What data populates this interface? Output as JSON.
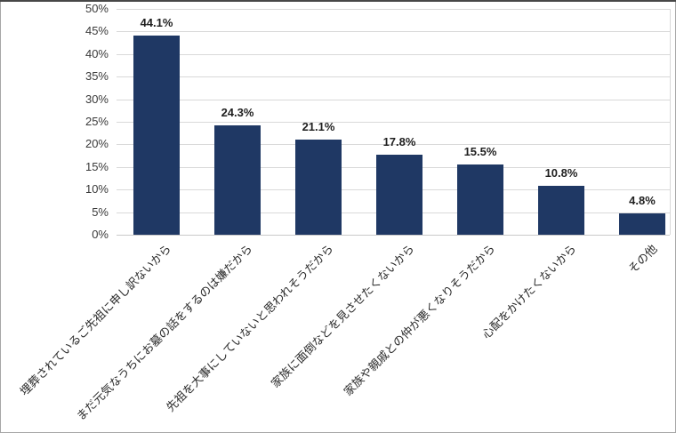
{
  "chart_data": {
    "type": "bar",
    "title": "",
    "xlabel": "",
    "ylabel": "",
    "categories": [
      "埋葬されているご先祖に申し訳ないから",
      "まだ元気なうちにお墓の話をするのは嫌だから",
      "先祖を大事にしていないと思われそうだから",
      "家族に面倒などを見させたくないから",
      "家族や親戚との仲が悪くなりそうだから",
      "心配をかけたくないから",
      "その他"
    ],
    "values": [
      44.1,
      24.3,
      21.1,
      17.8,
      15.5,
      10.8,
      4.8
    ],
    "data_labels": [
      "44.1%",
      "24.3%",
      "21.1%",
      "17.8%",
      "15.5%",
      "10.8%",
      "4.8%"
    ],
    "yticks": [
      "0%",
      "5%",
      "10%",
      "15%",
      "20%",
      "25%",
      "30%",
      "35%",
      "40%",
      "45%",
      "50%"
    ],
    "ylim": [
      0,
      50
    ],
    "ytick_step": 5,
    "grid": "horizontal",
    "legend": "none",
    "category_label_rotation_deg": 45,
    "colors": {
      "bar": "#1f3864",
      "gridline": "#d9d9d9",
      "axis_text": "#3a3a3a",
      "data_label_text": "#1f1f1f",
      "frame_border": "#a6a6a6",
      "frame_top": "#474747",
      "background": "#ffffff"
    }
  }
}
